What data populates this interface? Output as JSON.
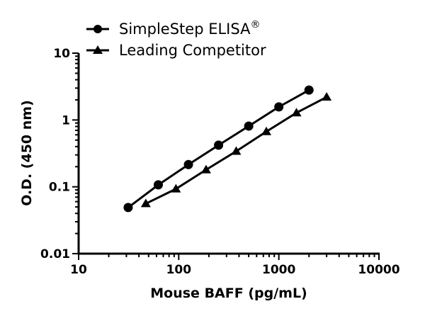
{
  "chart_data": {
    "type": "line",
    "title": "",
    "xlabel": "Mouse BAFF (pg/mL)",
    "ylabel": "O.D. (450 nm)",
    "xscale": "log",
    "yscale": "log",
    "xlim": [
      10,
      10000
    ],
    "ylim": [
      0.01,
      10
    ],
    "xticks": [
      "10",
      "100",
      "1000",
      "10000"
    ],
    "yticks": [
      "0.01",
      "0.1",
      "1",
      "10"
    ],
    "grid": false,
    "legend": "top-left",
    "series": [
      {
        "name": "SimpleStep ELISA",
        "superscript": "®",
        "marker": "circle",
        "color": "#000000",
        "x": [
          31.25,
          62.5,
          125,
          250,
          500,
          1000,
          2000
        ],
        "y": [
          0.049,
          0.107,
          0.215,
          0.42,
          0.81,
          1.57,
          2.8
        ]
      },
      {
        "name": "Leading Competitor",
        "marker": "triangle",
        "color": "#000000",
        "x": [
          46.9,
          93.75,
          187.5,
          375,
          750,
          1500,
          3000
        ],
        "y": [
          0.056,
          0.093,
          0.18,
          0.34,
          0.67,
          1.28,
          2.2
        ]
      }
    ]
  }
}
